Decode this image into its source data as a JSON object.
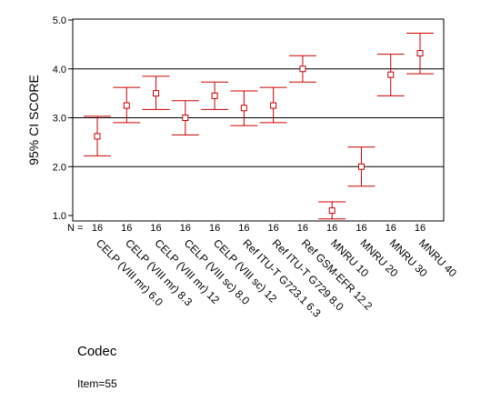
{
  "chart_data": {
    "type": "errorbar",
    "title": "",
    "xlabel": "Codec",
    "ylabel": "95% CI SCORE",
    "ylim": [
      1.0,
      5.0
    ],
    "yticks": [
      "1.0",
      "2.0",
      "3.0",
      "4.0",
      "5.0"
    ],
    "gridlines_y": [
      2.0,
      3.0,
      4.0
    ],
    "n_label": "N =",
    "categories": [
      "CELP (VIII mr) 6.0",
      "CELP (VIII mr) 8.3",
      "CELP (VIII mr) 12",
      "CELP (VIII sc) 8.0",
      "CELP (VIII sc) 12",
      "Ref ITU-T G723.1 6.3",
      "Ref ITU-T G729 8.0",
      "Ref GSM-EFR 12.2",
      "MNRU 10",
      "MNRU 20",
      "MNRU 30",
      "MNRU 40"
    ],
    "n": [
      "16",
      "16",
      "16",
      "16",
      "16",
      "16",
      "16",
      "16",
      "16",
      "16",
      "16",
      "16"
    ],
    "means": [
      2.62,
      3.25,
      3.5,
      3.0,
      3.45,
      3.2,
      3.25,
      4.0,
      1.1,
      2.0,
      3.88,
      4.32
    ],
    "lower": [
      2.22,
      2.9,
      3.17,
      2.65,
      3.17,
      2.84,
      2.9,
      3.73,
      0.93,
      1.6,
      3.45,
      3.9
    ],
    "upper": [
      3.03,
      3.62,
      3.85,
      3.35,
      3.73,
      3.55,
      3.62,
      4.27,
      1.28,
      2.4,
      4.3,
      4.73
    ],
    "color": "#cc0000",
    "footnote": "Item=55"
  }
}
